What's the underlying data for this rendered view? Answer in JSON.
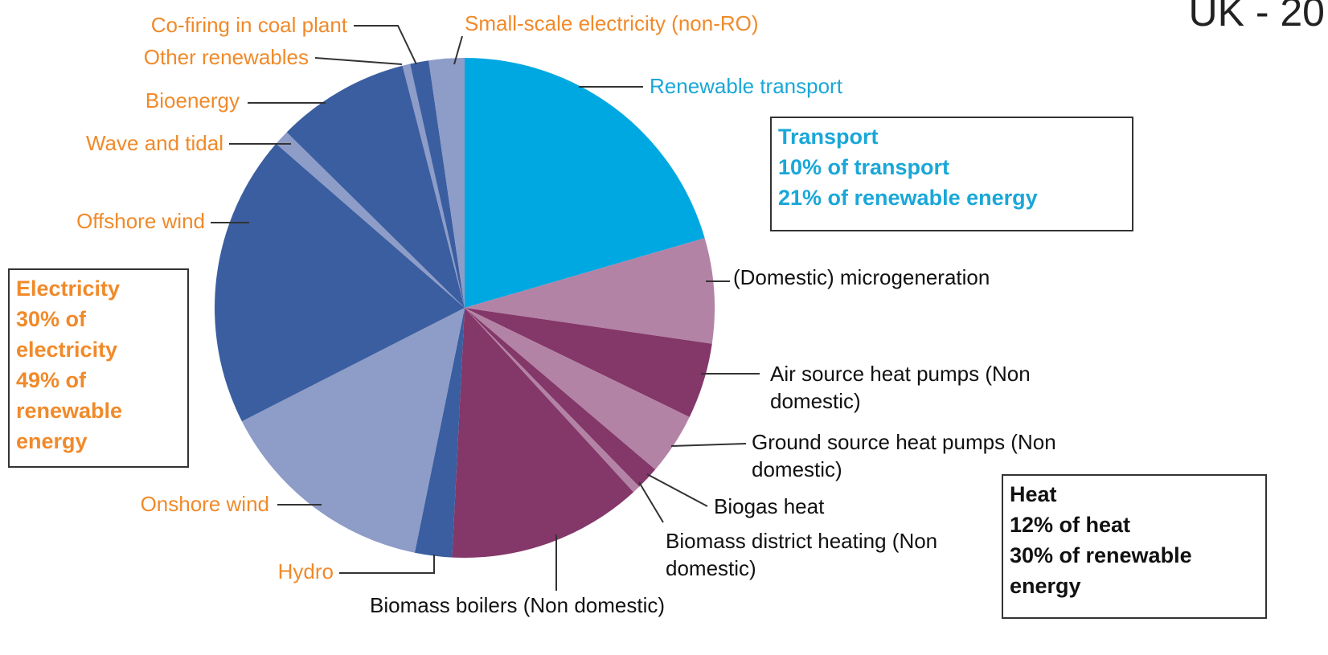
{
  "chart_data": {
    "type": "pie",
    "title": "UK - 20",
    "categories": [
      "Renewable transport",
      "(Domestic) microgeneration",
      "Air source heat pumps (Non domestic)",
      "Ground source heat pumps (Non domestic)",
      "Biogas heat",
      "Biomass district heating (Non domestic)",
      "Biomass boilers (Non domestic)",
      "Hydro",
      "Onshore wind",
      "Offshore wind",
      "Wave and tidal",
      "Bioenergy",
      "Other renewables",
      "Co-firing in coal plant",
      "Small-scale electricity (non-RO)"
    ],
    "values": [
      20.5,
      6.8,
      4.9,
      4.0,
      1.5,
      0.5,
      12.6,
      2.4,
      14.3,
      18.9,
      1.0,
      8.6,
      0.5,
      1.2,
      2.3
    ],
    "colors": [
      "#00a8e1",
      "#b383a6",
      "#843769",
      "#b383a6",
      "#843769",
      "#b383a6",
      "#843769",
      "#3a5ea0",
      "#8e9cc8",
      "#3a5ea0",
      "#8e9cc8",
      "#3a5ea0",
      "#8e9cc8",
      "#3a5ea0",
      "#8e9cc8"
    ],
    "label_colors": [
      "#1aa7d8",
      "#111111",
      "#111111",
      "#111111",
      "#111111",
      "#111111",
      "#111111",
      "#f08a2a",
      "#f08a2a",
      "#f08a2a",
      "#f08a2a",
      "#f08a2a",
      "#f08a2a",
      "#f08a2a",
      "#f08a2a"
    ],
    "annotations": [
      {
        "title": "Transport",
        "lines": [
          "10% of transport",
          "21% of renewable energy"
        ],
        "color": "#1aa7d8"
      },
      {
        "title": "Electricity",
        "lines": [
          "30% of electricity",
          "49% of renewable energy"
        ],
        "color": "#f08a2a"
      },
      {
        "title": "Heat",
        "lines": [
          "12% of heat",
          "30% of renewable energy"
        ],
        "color": "#111111"
      }
    ]
  }
}
